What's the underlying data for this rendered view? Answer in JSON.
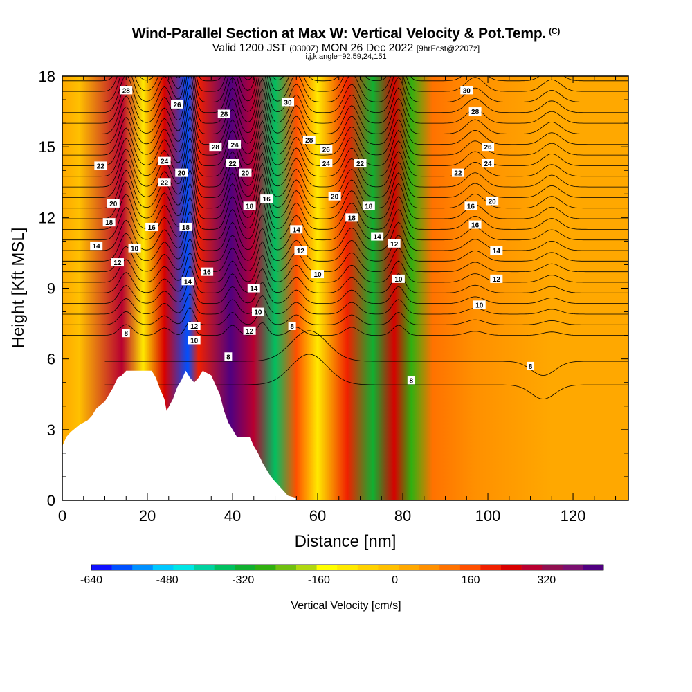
{
  "title": {
    "main": "Wind-Parallel Section at Max W: Vertical Velocity & Pot.Temp.",
    "copyright": "(C)",
    "valid_prefix": "Valid 1200 JST",
    "valid_utc": "(0300Z)",
    "valid_date": "MON 26 Dec 2022",
    "forecast": "[9hrFcst@2207z]",
    "indices": "i,j,k,angle=92,59,24,151"
  },
  "chart_data": {
    "type": "heatmap",
    "xlabel": "Distance [nm]",
    "ylabel": "Height [Kft MSL]",
    "xlim": [
      0,
      133
    ],
    "ylim": [
      0,
      18
    ],
    "x_ticks": [
      0,
      20,
      40,
      60,
      80,
      100,
      120
    ],
    "y_ticks": [
      0,
      3,
      6,
      9,
      12,
      15,
      18
    ],
    "colorbar": {
      "label": "Vertical Velocity [cm/s]",
      "ticks": [
        -640,
        -480,
        -320,
        -160,
        0,
        160,
        320
      ],
      "range": [
        -640,
        440
      ],
      "colors": [
        "#1010ff",
        "#0050ff",
        "#0090ff",
        "#00c8ff",
        "#00e6e6",
        "#00d2a0",
        "#00c060",
        "#10b030",
        "#30b010",
        "#70c010",
        "#b0d810",
        "#ffff00",
        "#ffea00",
        "#ffd200",
        "#ffc000",
        "#ffa800",
        "#ff9000",
        "#ff7200",
        "#ff5000",
        "#f02000",
        "#d80000",
        "#b80030",
        "#901050",
        "#7a1070",
        "#500080"
      ]
    },
    "vertical_velocity_bands": [
      {
        "x": 4,
        "w": -10
      },
      {
        "x": 14,
        "w": 300
      },
      {
        "x": 19,
        "w": -100
      },
      {
        "x": 24,
        "w": 240
      },
      {
        "x": 29.5,
        "w": -560
      },
      {
        "x": 32,
        "w": 200
      },
      {
        "x": 39.5,
        "w": 400
      },
      {
        "x": 45,
        "w": 300
      },
      {
        "x": 50,
        "w": -360
      },
      {
        "x": 55,
        "w": 180
      },
      {
        "x": 60,
        "w": -90
      },
      {
        "x": 67,
        "w": 220
      },
      {
        "x": 73,
        "w": -300
      },
      {
        "x": 78,
        "w": 250
      },
      {
        "x": 82,
        "w": -290
      },
      {
        "x": 87,
        "w": 130
      },
      {
        "x": 97,
        "w": 60
      },
      {
        "x": 115,
        "w": 40
      }
    ],
    "terrain": [
      [
        0,
        2.3
      ],
      [
        1,
        2.7
      ],
      [
        2,
        2.9
      ],
      [
        4,
        3.2
      ],
      [
        6,
        3.4
      ],
      [
        7,
        3.6
      ],
      [
        8,
        3.9
      ],
      [
        10,
        4.2
      ],
      [
        11,
        4.5
      ],
      [
        12,
        4.8
      ],
      [
        13,
        5.2
      ],
      [
        14,
        5.3
      ],
      [
        15,
        5.5
      ],
      [
        21,
        5.5
      ],
      [
        22,
        5.2
      ],
      [
        23,
        4.7
      ],
      [
        24,
        4.3
      ],
      [
        24.5,
        3.8
      ],
      [
        26,
        4.3
      ],
      [
        27,
        4.8
      ],
      [
        28,
        5.1
      ],
      [
        29,
        5.5
      ],
      [
        30,
        5.2
      ],
      [
        31,
        5.0
      ],
      [
        32,
        5.2
      ],
      [
        33,
        5.5
      ],
      [
        35,
        5.3
      ],
      [
        36,
        4.9
      ],
      [
        37,
        4.5
      ],
      [
        38,
        3.8
      ],
      [
        39,
        3.3
      ],
      [
        40,
        3.0
      ],
      [
        41,
        2.7
      ],
      [
        42,
        2.7
      ],
      [
        44,
        2.7
      ],
      [
        45,
        2.3
      ],
      [
        46,
        2.0
      ],
      [
        47,
        1.6
      ],
      [
        48,
        1.3
      ],
      [
        49,
        1.0
      ],
      [
        50,
        0.8
      ],
      [
        51,
        0.6
      ],
      [
        52,
        0.4
      ],
      [
        53,
        0.2
      ],
      [
        55,
        0.1
      ]
    ],
    "theta_contours": [
      8,
      10,
      12,
      14,
      16,
      18,
      20,
      22,
      24,
      26,
      28,
      30
    ],
    "contour_labels": [
      {
        "text": "28",
        "x": 15,
        "y": 17.4
      },
      {
        "text": "26",
        "x": 27,
        "y": 16.8
      },
      {
        "text": "28",
        "x": 38,
        "y": 16.4
      },
      {
        "text": "30",
        "x": 53,
        "y": 16.9
      },
      {
        "text": "30",
        "x": 95,
        "y": 17.4
      },
      {
        "text": "28",
        "x": 97,
        "y": 16.5
      },
      {
        "text": "28",
        "x": 58,
        "y": 15.3
      },
      {
        "text": "26",
        "x": 62,
        "y": 14.9
      },
      {
        "text": "28",
        "x": 36,
        "y": 15.0
      },
      {
        "text": "24",
        "x": 40.5,
        "y": 15.1
      },
      {
        "text": "26",
        "x": 100,
        "y": 15.0
      },
      {
        "text": "22",
        "x": 9,
        "y": 14.2
      },
      {
        "text": "24",
        "x": 24,
        "y": 14.4
      },
      {
        "text": "22",
        "x": 24,
        "y": 13.5
      },
      {
        "text": "20",
        "x": 28,
        "y": 13.9
      },
      {
        "text": "22",
        "x": 40,
        "y": 14.3
      },
      {
        "text": "20",
        "x": 43,
        "y": 13.9
      },
      {
        "text": "24",
        "x": 62,
        "y": 14.3
      },
      {
        "text": "22",
        "x": 70,
        "y": 14.3
      },
      {
        "text": "24",
        "x": 100,
        "y": 14.3
      },
      {
        "text": "22",
        "x": 93,
        "y": 13.9
      },
      {
        "text": "20",
        "x": 12,
        "y": 12.6
      },
      {
        "text": "18",
        "x": 11,
        "y": 11.8
      },
      {
        "text": "16",
        "x": 21,
        "y": 11.6
      },
      {
        "text": "14",
        "x": 8,
        "y": 10.8
      },
      {
        "text": "12",
        "x": 13,
        "y": 10.1
      },
      {
        "text": "10",
        "x": 17,
        "y": 10.7
      },
      {
        "text": "18",
        "x": 29,
        "y": 11.6
      },
      {
        "text": "18",
        "x": 44,
        "y": 12.5
      },
      {
        "text": "16",
        "x": 48,
        "y": 12.8
      },
      {
        "text": "20",
        "x": 64,
        "y": 12.9
      },
      {
        "text": "18",
        "x": 68,
        "y": 12.0
      },
      {
        "text": "18",
        "x": 72,
        "y": 12.5
      },
      {
        "text": "16",
        "x": 96,
        "y": 12.5
      },
      {
        "text": "20",
        "x": 101,
        "y": 12.7
      },
      {
        "text": "16",
        "x": 97,
        "y": 11.7
      },
      {
        "text": "14",
        "x": 55,
        "y": 11.5
      },
      {
        "text": "14",
        "x": 74,
        "y": 11.2
      },
      {
        "text": "12",
        "x": 78,
        "y": 10.9
      },
      {
        "text": "12",
        "x": 56,
        "y": 10.6
      },
      {
        "text": "14",
        "x": 102,
        "y": 10.6
      },
      {
        "text": "16",
        "x": 34,
        "y": 9.7
      },
      {
        "text": "14",
        "x": 29.5,
        "y": 9.3
      },
      {
        "text": "10",
        "x": 60,
        "y": 9.6
      },
      {
        "text": "10",
        "x": 79,
        "y": 9.4
      },
      {
        "text": "12",
        "x": 102,
        "y": 9.4
      },
      {
        "text": "14",
        "x": 45,
        "y": 9.0
      },
      {
        "text": "10",
        "x": 46,
        "y": 8.0
      },
      {
        "text": "10",
        "x": 98,
        "y": 8.3
      },
      {
        "text": "12",
        "x": 31,
        "y": 7.4
      },
      {
        "text": "10",
        "x": 31,
        "y": 6.8
      },
      {
        "text": "8",
        "x": 15,
        "y": 7.1
      },
      {
        "text": "12",
        "x": 44,
        "y": 7.2
      },
      {
        "text": "8",
        "x": 54,
        "y": 7.4
      },
      {
        "text": "8",
        "x": 39,
        "y": 6.1
      },
      {
        "text": "8",
        "x": 110,
        "y": 5.7
      },
      {
        "text": "8",
        "x": 82,
        "y": 5.1
      }
    ]
  }
}
